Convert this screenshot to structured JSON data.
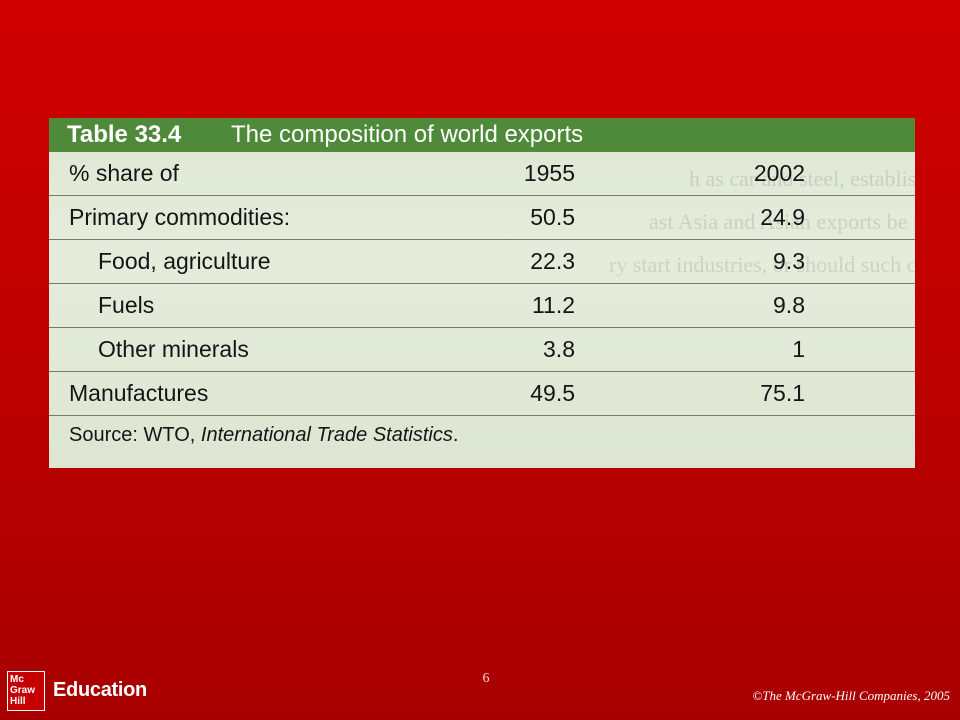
{
  "table": {
    "number": "Table 33.4",
    "title": "The composition of world exports",
    "header_row": {
      "label": "% share of",
      "col_1955": "1955",
      "col_2002": "2002"
    },
    "rows": [
      {
        "label": "Primary commodities:",
        "v1955": "50.5",
        "v2002": "24.9"
      },
      {
        "label": "Food, agriculture",
        "v1955": "22.3",
        "v2002": "9.3"
      },
      {
        "label": "Fuels",
        "v1955": "11.2",
        "v2002": "9.8"
      },
      {
        "label": "Other minerals",
        "v1955": "3.8",
        "v2002": "1"
      },
      {
        "label": "Manufactures",
        "v1955": "49.5",
        "v2002": "75.1"
      }
    ],
    "source_prefix": "Source: WTO, ",
    "source_title": "International Trade Statistics",
    "source_suffix": "."
  },
  "footer": {
    "page_number": "6",
    "logo_line1": "Mc",
    "logo_line2": "Graw",
    "logo_line3": "Hill",
    "logo_word": "Education",
    "copyright": "©The McGraw-Hill Companies, 2005"
  }
}
